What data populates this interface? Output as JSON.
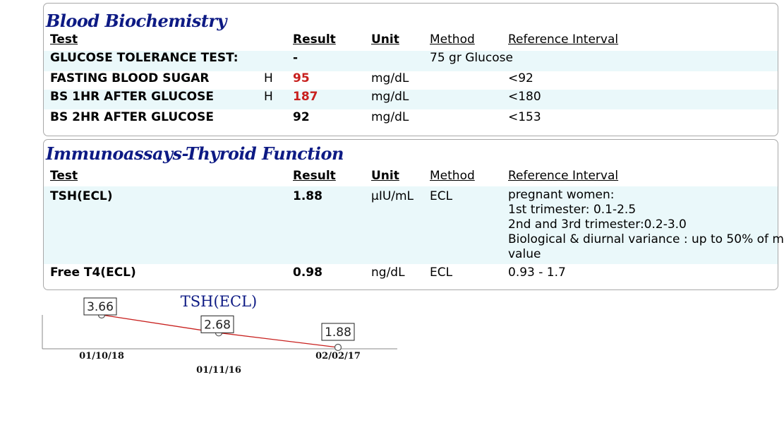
{
  "biochem": {
    "title": "Blood Biochemistry",
    "headers": {
      "test": "Test",
      "result": "Result",
      "unit": "Unit",
      "method": "Method",
      "reference": "Reference Interval"
    },
    "rows": [
      {
        "test": "GLUCOSE TOLERANCE TEST:",
        "flag": "",
        "result": "-",
        "unit": "",
        "method": "75 gr Glucose",
        "reference": ""
      },
      {
        "test": "FASTING BLOOD SUGAR",
        "flag": "H",
        "result": "95",
        "unit": "mg/dL",
        "method": "",
        "reference": "<92"
      },
      {
        "test": "BS 1HR AFTER GLUCOSE",
        "flag": "H",
        "result": "187",
        "unit": "mg/dL",
        "method": "",
        "reference": "<180"
      },
      {
        "test": "BS 2HR AFTER GLUCOSE",
        "flag": "",
        "result": "92",
        "unit": "mg/dL",
        "method": "",
        "reference": "<153"
      }
    ]
  },
  "thyroid": {
    "title": "Immunoassays-Thyroid Function",
    "headers": {
      "test": "Test",
      "result": "Result",
      "unit": "Unit",
      "method": "Method",
      "reference": "Reference Interval"
    },
    "rows": [
      {
        "test": "TSH(ECL)",
        "result": "1.88",
        "unit": "µIU/mL",
        "method": "ECL",
        "reference_lines": [
          "pregnant women:",
          "1st trimester: 0.1-2.5",
          "2nd and 3rd trimester:0.2-3.0",
          "Biological & diurnal variance : up to 50% of m",
          "value"
        ]
      },
      {
        "test": "Free T4(ECL)",
        "result": "0.98",
        "unit": "ng/dL",
        "method": "ECL",
        "reference_lines": [
          "0.93 - 1.7"
        ]
      }
    ]
  },
  "colors": {
    "title": "#0d1a84",
    "flag_high": "#c8201e",
    "row_shade": "#eaf8fa",
    "trend_line": "#c8201e"
  },
  "chart_data": {
    "type": "line",
    "title": "TSH(ECL)",
    "x": [
      "01/10/18",
      "01/11/16",
      "02/02/17"
    ],
    "values": [
      3.66,
      2.68,
      1.88
    ],
    "labels": [
      "3.66",
      "2.68",
      "1.88"
    ],
    "ylim": [
      1.88,
      3.66
    ],
    "grid": false,
    "legend": "none"
  }
}
